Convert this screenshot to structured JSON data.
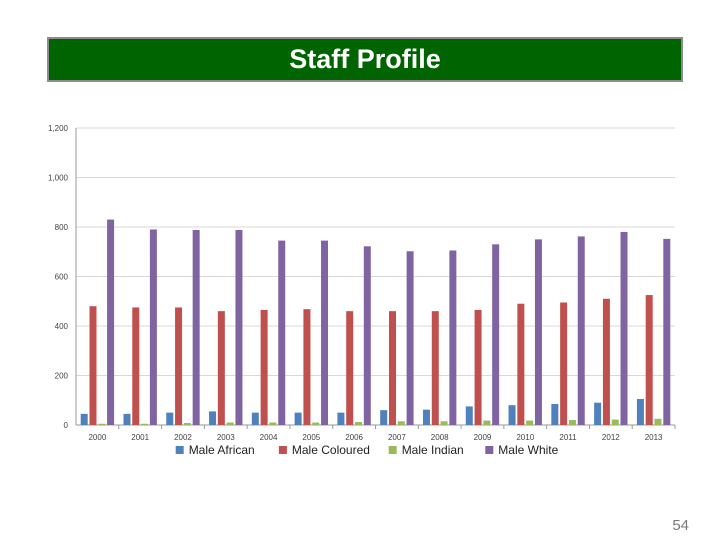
{
  "slide": {
    "title": "Staff Profile",
    "page_number": "54"
  },
  "chart_data": {
    "type": "bar",
    "categories": [
      "2000",
      "2001",
      "2002",
      "2003",
      "2004",
      "2005",
      "2006",
      "2007",
      "2008",
      "2009",
      "2010",
      "2011",
      "2012",
      "2013"
    ],
    "series": [
      {
        "name": "Male African",
        "color": "#4f81bd",
        "values": [
          45,
          45,
          50,
          55,
          50,
          50,
          50,
          60,
          62,
          75,
          80,
          85,
          90,
          105
        ]
      },
      {
        "name": "Male Coloured",
        "color": "#c0504d",
        "values": [
          480,
          475,
          475,
          460,
          465,
          468,
          460,
          460,
          460,
          465,
          490,
          495,
          510,
          525
        ]
      },
      {
        "name": "Male Indian",
        "color": "#9bbb59",
        "values": [
          5,
          5,
          8,
          10,
          10,
          10,
          12,
          15,
          15,
          18,
          18,
          20,
          22,
          25
        ]
      },
      {
        "name": "Male White",
        "color": "#8064a2",
        "values": [
          830,
          790,
          788,
          788,
          745,
          745,
          722,
          702,
          705,
          730,
          750,
          762,
          780,
          752
        ]
      }
    ],
    "ylim": [
      0,
      1200
    ],
    "yticks": [
      "0",
      "200",
      "400",
      "600",
      "800",
      "1,000",
      "1,200"
    ],
    "grid": true,
    "legend_position": "bottom"
  }
}
